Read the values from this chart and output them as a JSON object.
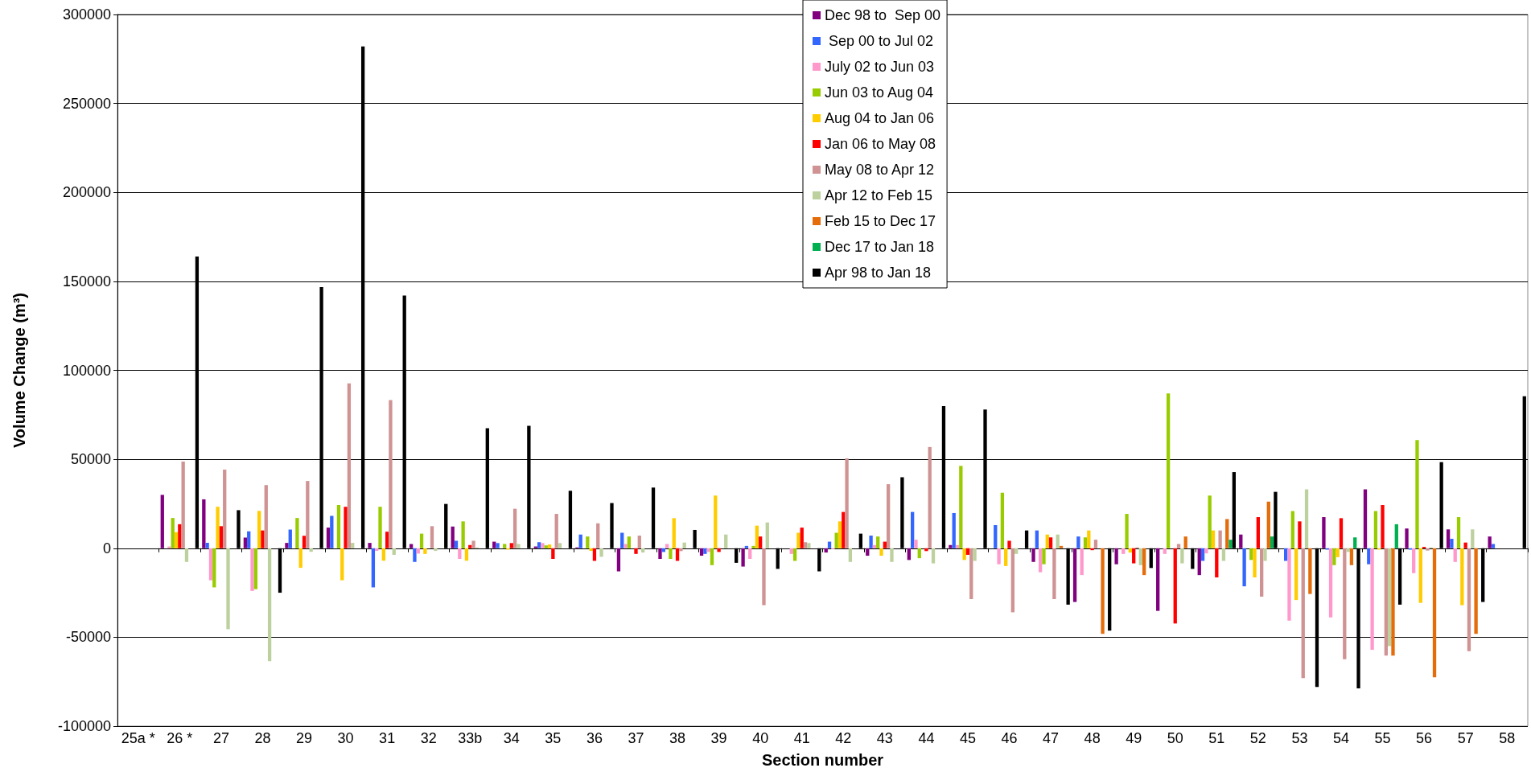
{
  "chart_data": {
    "type": "bar",
    "xlabel": "Section number",
    "ylabel": "Volume Change (m³)",
    "categories": [
      "25a *",
      "26 *",
      "27",
      "28",
      "29",
      "30",
      "31",
      "32",
      "33b",
      "34",
      "35",
      "36",
      "37",
      "38",
      "39",
      "40",
      "41",
      "42",
      "43",
      "44",
      "45",
      "46",
      "47",
      "48",
      "49",
      "50",
      "51",
      "52",
      "53",
      "54",
      "55",
      "56",
      "57",
      "58"
    ],
    "series": [
      {
        "name": "Dec 98 to  Sep 00",
        "color": "#800080",
        "values": [
          null,
          30000,
          27500,
          6000,
          3000,
          11600,
          3000,
          2400,
          12200,
          3700,
          1000,
          500,
          -13000,
          -6000,
          -4200,
          -10300,
          null,
          -2400,
          -4200,
          -6600,
          1800,
          null,
          -7700,
          -30200,
          -9000,
          -35200,
          -15100,
          7700,
          null,
          17500,
          33100,
          11100,
          10600,
          6600
        ]
      },
      {
        "name": " Sep 00 to Jul 02",
        "color": "#3366ff",
        "values": [
          null,
          null,
          3000,
          9500,
          10500,
          18200,
          -22000,
          -7700,
          4200,
          2900,
          3400,
          7700,
          8700,
          -2100,
          -3200,
          1300,
          null,
          3700,
          7100,
          20400,
          19800,
          13000,
          10000,
          6600,
          null,
          null,
          -7100,
          -21400,
          -7100,
          -800,
          -9000,
          -800,
          5300,
          2400
        ]
      },
      {
        "name": "July 02 to Jun 03",
        "color": "#ff99cc",
        "values": [
          null,
          1000,
          -18000,
          -24000,
          null,
          null,
          -1500,
          -3000,
          -6000,
          null,
          2900,
          null,
          2400,
          2400,
          -2100,
          -6000,
          -3200,
          -500,
          1800,
          4800,
          1800,
          -9000,
          -13500,
          -15100,
          -3200,
          -3200,
          -2900,
          null,
          -40700,
          -38900,
          -57100,
          -14000,
          -7700,
          null
        ]
      },
      {
        "name": "Jun 03 to Aug 04",
        "color": "#99cc00",
        "values": [
          null,
          17000,
          -22000,
          -23000,
          17000,
          24300,
          23300,
          8200,
          15100,
          2400,
          1600,
          6600,
          6600,
          -6000,
          -9500,
          1300,
          -7100,
          8700,
          6600,
          -5600,
          46300,
          31200,
          -9000,
          6100,
          19300,
          87000,
          29600,
          -6600,
          20900,
          -9500,
          20900,
          60800,
          17500,
          null
        ]
      },
      {
        "name": "Aug 04 to Jan 06",
        "color": "#ffcc00",
        "values": [
          null,
          9000,
          23300,
          21000,
          -11000,
          -18000,
          -7000,
          -3200,
          -7000,
          -800,
          2100,
          -1500,
          null,
          16900,
          29600,
          12700,
          8700,
          15100,
          -4200,
          null,
          -6600,
          -10000,
          7700,
          10000,
          -2400,
          null,
          10000,
          -16400,
          -29100,
          -5000,
          -800,
          -30700,
          -32000,
          null
        ]
      },
      {
        "name": "Jan 06 to May 08",
        "color": "#ff0000",
        "values": [
          null,
          13500,
          12400,
          10000,
          7000,
          23300,
          9300,
          null,
          1800,
          2900,
          -6000,
          -7100,
          -3200,
          -7100,
          -2100,
          6600,
          11600,
          20400,
          3700,
          -1600,
          -3700,
          4200,
          6100,
          -1100,
          -8500,
          -42300,
          -16400,
          17500,
          15100,
          16900,
          24300,
          800,
          3200,
          null
        ]
      },
      {
        "name": "May 08 to Apr 12",
        "color": "#d09393",
        "values": [
          null,
          48700,
          44200,
          35500,
          37800,
          92600,
          83300,
          12400,
          4200,
          22200,
          19300,
          14000,
          7100,
          -1600,
          null,
          -32000,
          3400,
          50500,
          36000,
          56900,
          -28600,
          -36000,
          -28600,
          4800,
          500,
          2400,
          10000,
          -27200,
          -73000,
          -62400,
          -60300,
          -1300,
          -57900,
          null
        ]
      },
      {
        "name": "Apr 12 to Feb 15",
        "color": "#bcd19e",
        "values": [
          null,
          -7700,
          -45500,
          -63500,
          -2000,
          3000,
          -3700,
          -1500,
          500,
          2400,
          2900,
          -4800,
          -2400,
          3200,
          7700,
          14500,
          2900,
          -7700,
          -7700,
          -8500,
          -7100,
          -3200,
          7700,
          null,
          -9500,
          -8500,
          -7100,
          -7100,
          33100,
          -2100,
          -55000,
          500,
          10600,
          null
        ]
      },
      {
        "name": "Feb 15 to Dec 17",
        "color": "#e46c0a",
        "values": [
          null,
          null,
          null,
          null,
          null,
          null,
          null,
          null,
          null,
          null,
          null,
          null,
          null,
          null,
          null,
          null,
          null,
          null,
          null,
          null,
          null,
          null,
          1300,
          -48100,
          -15100,
          6600,
          16400,
          26200,
          -25700,
          -9500,
          -60300,
          -72500,
          -48100,
          null
        ]
      },
      {
        "name": "Dec 17 to Jan 18",
        "color": "#00b050",
        "values": [
          null,
          null,
          null,
          null,
          null,
          null,
          null,
          null,
          null,
          null,
          null,
          null,
          null,
          null,
          null,
          null,
          null,
          null,
          null,
          null,
          null,
          null,
          null,
          null,
          null,
          null,
          4800,
          6600,
          null,
          6100,
          13500,
          null,
          null,
          null
        ]
      },
      {
        "name": "Apr 98 to Jan 18",
        "color": "#000000",
        "values": [
          null,
          164000,
          21400,
          -25000,
          146800,
          282000,
          142000,
          24900,
          67500,
          68800,
          32300,
          25400,
          34100,
          10300,
          -8200,
          -11600,
          -13000,
          8200,
          39900,
          79900,
          78000,
          10000,
          -31700,
          -46300,
          -11100,
          -11600,
          42800,
          31700,
          -78000,
          -78800,
          -31700,
          48400,
          -30200,
          85400
        ]
      }
    ],
    "ylim": [
      -100000,
      300000
    ],
    "yticks": [
      -100000,
      -50000,
      0,
      50000,
      100000,
      150000,
      200000,
      250000,
      300000
    ],
    "grid": "y",
    "legend": "top"
  }
}
